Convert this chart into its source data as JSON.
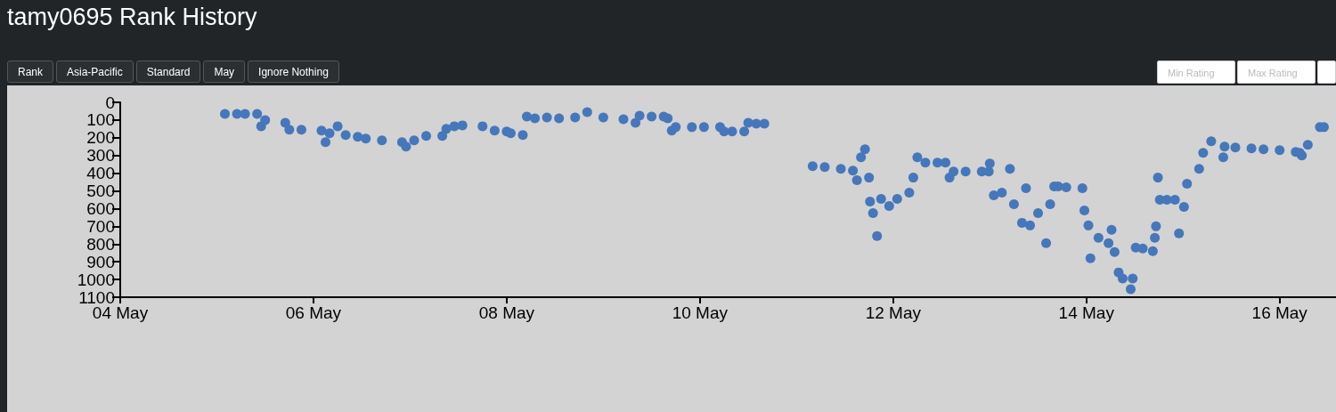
{
  "chart_data": {
    "type": "scatter",
    "title": "tamy0695 Rank History",
    "annotations": [
      "Rank",
      "Asia-Pacific",
      "Standard",
      "May",
      "Ignore Nothing",
      "Min Rating",
      "Max Rating"
    ],
    "marker": "circle",
    "xlim": [
      "--05-04",
      "--05-16T14:00"
    ],
    "xticks": [
      {
        "value": "--05-04",
        "label": "04 May"
      },
      {
        "value": "--05-06",
        "label": "06 May"
      },
      {
        "value": "--05-08",
        "label": "08 May"
      },
      {
        "value": "--05-10",
        "label": "10 May"
      },
      {
        "value": "--05-12",
        "label": "12 May"
      },
      {
        "value": "--05-14",
        "label": "14 May"
      },
      {
        "value": "--05-16",
        "label": "16 May"
      }
    ],
    "ylim": [
      1100,
      0
    ],
    "yticks": [
      0,
      100,
      200,
      300,
      400,
      500,
      600,
      700,
      800,
      900,
      1000,
      1100
    ],
    "series": [
      {
        "color": "#4677ba",
        "x": [
          "--05-05T02:00",
          "--05-05T05:00",
          "--05-05T07:00",
          "--05-05T10:00",
          "--05-05T11:00",
          "--05-05T12:00",
          "--05-05T17:00",
          "--05-05T18:00",
          "--05-05T21:00",
          "--05-06T02:00",
          "--05-06T03:00",
          "--05-06T04:00",
          "--05-06T06:00",
          "--05-06T08:00",
          "--05-06T11:00",
          "--05-06T13:00",
          "--05-06T17:00",
          "--05-06T22:00",
          "--05-06T23:00",
          "--05-07T01:00",
          "--05-07T04:00",
          "--05-07T08:00",
          "--05-07T09:00",
          "--05-07T11:00",
          "--05-07T13:00",
          "--05-07T18:00",
          "--05-07T21:00",
          "--05-08T00:00",
          "--05-08T01:00",
          "--05-08T04:00",
          "--05-08T05:00",
          "--05-08T07:00",
          "--05-08T10:00",
          "--05-08T13:00",
          "--05-08T17:00",
          "--05-08T20:00",
          "--05-09T00:00",
          "--05-09T05:00",
          "--05-09T08:00",
          "--05-09T09:00",
          "--05-09T12:00",
          "--05-09T15:00",
          "--05-09T16:00",
          "--05-09T17:00",
          "--05-09T18:00",
          "--05-09T22:00",
          "--05-10T01:00",
          "--05-10T05:00",
          "--05-10T06:00",
          "--05-10T08:00",
          "--05-10T11:00",
          "--05-10T12:00",
          "--05-10T14:00",
          "--05-10T16:00",
          "--05-11T04:00",
          "--05-11T07:00",
          "--05-11T11:00",
          "--05-11T14:00",
          "--05-11T15:00",
          "--05-11T16:00",
          "--05-11T17:00",
          "--05-11T18:00",
          "--05-11T18:15",
          "--05-11T19:00",
          "--05-11T20:00",
          "--05-11T21:00",
          "--05-11T23:00",
          "--05-12T01:00",
          "--05-12T04:00",
          "--05-12T05:00",
          "--05-12T06:00",
          "--05-12T08:00",
          "--05-12T11:00",
          "--05-12T13:00",
          "--05-12T14:00",
          "--05-12T15:00",
          "--05-12T18:00",
          "--05-12T22:00",
          "--05-12T23:45",
          "--05-13T00:00",
          "--05-13T01:00",
          "--05-13T03:00",
          "--05-13T05:00",
          "--05-13T06:00",
          "--05-13T08:00",
          "--05-13T09:00",
          "--05-13T10:00",
          "--05-13T12:00",
          "--05-13T14:00",
          "--05-13T15:00",
          "--05-13T16:00",
          "--05-13T17:00",
          "--05-13T19:00",
          "--05-13T23:00",
          "--05-13T23:30",
          "--05-14T00:30",
          "--05-14T01:00",
          "--05-14T03:00",
          "--05-14T05:30",
          "--05-14T06:15",
          "--05-14T07:00",
          "--05-14T08:00",
          "--05-14T09:00",
          "--05-14T11:00",
          "--05-14T11:30",
          "--05-14T12:15",
          "--05-14T14:00",
          "--05-14T16:30",
          "--05-14T17:00",
          "--05-14T17:17",
          "--05-14T17:46",
          "--05-14T18:14",
          "--05-14T20:00",
          "--05-14T22:00",
          "--05-14T23:00",
          "--05-15T00:14",
          "--05-15T01:00",
          "--05-15T04:00",
          "--05-15T05:00",
          "--05-15T07:00",
          "--05-15T10:00",
          "--05-15T10:19",
          "--05-15T13:00",
          "--05-15T17:00",
          "--05-15T20:00",
          "--05-16T00:00",
          "--05-16T04:00",
          "--05-16T05:00",
          "--05-16T05:31",
          "--05-16T07:00",
          "--05-16T10:00",
          "--05-16T11:00"
        ],
        "values": [
          65,
          65,
          65,
          65,
          135,
          100,
          115,
          155,
          155,
          160,
          225,
          175,
          135,
          185,
          195,
          205,
          215,
          225,
          250,
          215,
          190,
          190,
          150,
          135,
          130,
          135,
          160,
          165,
          175,
          185,
          80,
          90,
          85,
          90,
          85,
          55,
          85,
          95,
          115,
          75,
          80,
          80,
          90,
          160,
          140,
          140,
          140,
          140,
          165,
          165,
          165,
          115,
          120,
          120,
          360,
          365,
          375,
          385,
          440,
          310,
          265,
          425,
          560,
          625,
          755,
          545,
          585,
          545,
          510,
          425,
          310,
          340,
          340,
          340,
          425,
          390,
          390,
          390,
          390,
          345,
          525,
          510,
          375,
          575,
          680,
          485,
          695,
          625,
          795,
          575,
          475,
          475,
          480,
          485,
          610,
          695,
          880,
          765,
          795,
          720,
          845,
          960,
          995,
          1055,
          995,
          820,
          825,
          840,
          765,
          700,
          425,
          550,
          550,
          550,
          740,
          590,
          460,
          375,
          285,
          220,
          310,
          250,
          255,
          260,
          265,
          270,
          280,
          285,
          300,
          240,
          140,
          140
        ]
      }
    ]
  }
}
